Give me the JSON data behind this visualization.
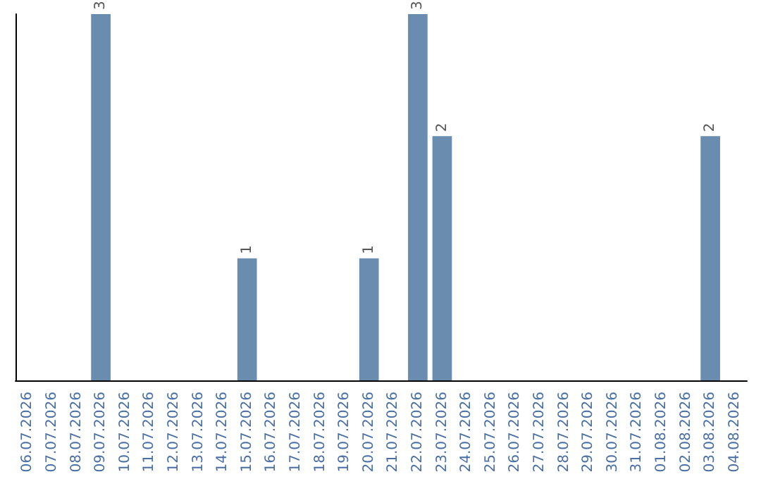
{
  "chart_data": {
    "type": "bar",
    "categories": [
      "06.07.2026",
      "07.07.2026",
      "08.07.2026",
      "09.07.2026",
      "10.07.2026",
      "11.07.2026",
      "12.07.2026",
      "13.07.2026",
      "14.07.2026",
      "15.07.2026",
      "16.07.2026",
      "17.07.2026",
      "18.07.2026",
      "19.07.2026",
      "20.07.2026",
      "21.07.2026",
      "22.07.2026",
      "23.07.2026",
      "24.07.2026",
      "25.07.2026",
      "26.07.2026",
      "27.07.2026",
      "28.07.2026",
      "29.07.2026",
      "30.07.2026",
      "31.07.2026",
      "01.08.2026",
      "02.08.2026",
      "03.08.2026",
      "04.08.2026"
    ],
    "values": [
      0,
      0,
      0,
      3,
      0,
      0,
      0,
      0,
      0,
      1,
      0,
      0,
      0,
      0,
      1,
      0,
      3,
      2,
      0,
      0,
      0,
      0,
      0,
      0,
      0,
      0,
      0,
      0,
      2,
      0
    ],
    "value_labels": [
      null,
      null,
      null,
      "3",
      null,
      null,
      null,
      null,
      null,
      "1",
      null,
      null,
      null,
      null,
      "1",
      null,
      "3",
      "2",
      null,
      null,
      null,
      null,
      null,
      null,
      null,
      null,
      null,
      null,
      "2",
      null
    ],
    "color": "#6a8cae",
    "grid": false,
    "tick_labels": "x"
  }
}
